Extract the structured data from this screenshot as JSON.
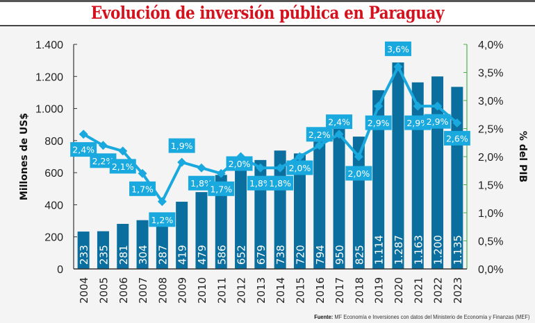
{
  "title": "Evolución de inversión pública en Paraguay",
  "source": {
    "label": "Fuente:",
    "text": "MF Economía e Inversiones con datos del Ministerio de Economía y Finanzas (MEF)"
  },
  "colors": {
    "title": "#d4121e",
    "bars": "#0a6e9e",
    "line": "#1aa9de",
    "right_axis": "#4caf50",
    "axis": "#333333"
  },
  "chart_data": {
    "type": "bar",
    "title": "Evolución de inversión pública en Paraguay",
    "categories": [
      "2004",
      "2005",
      "2006",
      "2007",
      "2008",
      "2009",
      "2010",
      "2011",
      "2012",
      "2013",
      "2014",
      "2015",
      "2016",
      "2017",
      "2018",
      "2019",
      "2020",
      "2021",
      "2022",
      "2023"
    ],
    "series": [
      {
        "name": "Millones de US$",
        "type": "bar",
        "axis": "left",
        "values": [
          233,
          235,
          281,
          304,
          287,
          419,
          479,
          586,
          652,
          679,
          738,
          720,
          794,
          950,
          825,
          1114,
          1287,
          1163,
          1200,
          1135
        ],
        "labels": [
          "233",
          "235",
          "281",
          "304",
          "287",
          "419",
          "479",
          "586",
          "652",
          "679",
          "738",
          "720",
          "794",
          "950",
          "825",
          "1.114",
          "1.287",
          "1.163",
          "1.200",
          "1.135"
        ]
      },
      {
        "name": "% del PIB",
        "type": "line",
        "axis": "right",
        "values": [
          2.4,
          2.2,
          2.1,
          1.7,
          1.2,
          1.9,
          1.8,
          1.7,
          2.0,
          1.8,
          1.8,
          2.0,
          2.2,
          2.4,
          2.0,
          2.9,
          3.6,
          2.9,
          2.9,
          2.6
        ],
        "labels": [
          "2,4%",
          "2,2%",
          "2,1%",
          "1,7%",
          "1,2%",
          "1,9%",
          "1,8%",
          "1,7%",
          "2,0%",
          "1,8%",
          "1,8%",
          "2,0%",
          "2,2%",
          "2,4%",
          "2,0%",
          "2,9%",
          "3,6%",
          "2,9%",
          "2,9%",
          "2,6%"
        ]
      }
    ],
    "ylabel": "Millones de US$",
    "ylabel_right": "% del PIB",
    "ylim": [
      0,
      1400
    ],
    "ylim_right": [
      0,
      4.0
    ],
    "yticks": [
      "0",
      "200",
      "400",
      "600",
      "800",
      "1.000",
      "1.200",
      "1.400"
    ],
    "yticks_right": [
      "0,0%",
      "0,5%",
      "1,0%",
      "1,5%",
      "2,0%",
      "2,5%",
      "3,0%",
      "3,5%",
      "4,0%"
    ],
    "grid": false,
    "legend": "none"
  }
}
